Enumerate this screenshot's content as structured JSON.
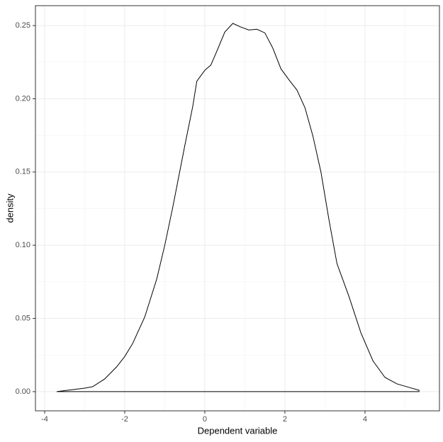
{
  "chart_data": {
    "type": "density",
    "x_label": "Dependent variable",
    "y_label": "density",
    "x": [
      -3.7,
      -3.0,
      -2.8,
      -2.5,
      -2.2,
      -2.0,
      -1.8,
      -1.5,
      -1.2,
      -1.0,
      -0.8,
      -0.5,
      -0.3,
      -0.2,
      0.0,
      0.15,
      0.3,
      0.5,
      0.7,
      0.9,
      1.1,
      1.3,
      1.5,
      1.7,
      1.9,
      2.1,
      2.3,
      2.5,
      2.7,
      2.9,
      3.1,
      3.3,
      3.6,
      3.9,
      4.2,
      4.5,
      4.8,
      5.1,
      5.35
    ],
    "values": [
      0.0,
      0.0024,
      0.0034,
      0.0087,
      0.017,
      0.024,
      0.033,
      0.051,
      0.077,
      0.1,
      0.126,
      0.168,
      0.195,
      0.212,
      0.2195,
      0.223,
      0.2325,
      0.2456,
      0.2515,
      0.249,
      0.247,
      0.2475,
      0.245,
      0.2345,
      0.2205,
      0.213,
      0.206,
      0.194,
      0.1745,
      0.15,
      0.1175,
      0.0875,
      0.065,
      0.04,
      0.021,
      0.0097,
      0.0053,
      0.0029,
      0.001
    ],
    "color": "#000000",
    "xlim": [
      -4.23,
      5.86
    ],
    "ylim": [
      -0.0131,
      0.2636
    ],
    "xticks": [
      -4,
      -2,
      0,
      2,
      4
    ],
    "yticks": [
      {
        "value": 0,
        "label": "0.00"
      },
      {
        "value": 0.05,
        "label": "0.05"
      },
      {
        "value": 0.1,
        "label": "0.10"
      },
      {
        "value": 0.15,
        "label": "0.15"
      },
      {
        "value": 0.2,
        "label": "0.20"
      },
      {
        "value": 0.25,
        "label": "0.25"
      }
    ],
    "x_minor_ticks": [
      -3,
      -1,
      1,
      3,
      5
    ],
    "y_minor_ticks": [
      0.025,
      0.075,
      0.125,
      0.175,
      0.225
    ],
    "grid": true
  }
}
